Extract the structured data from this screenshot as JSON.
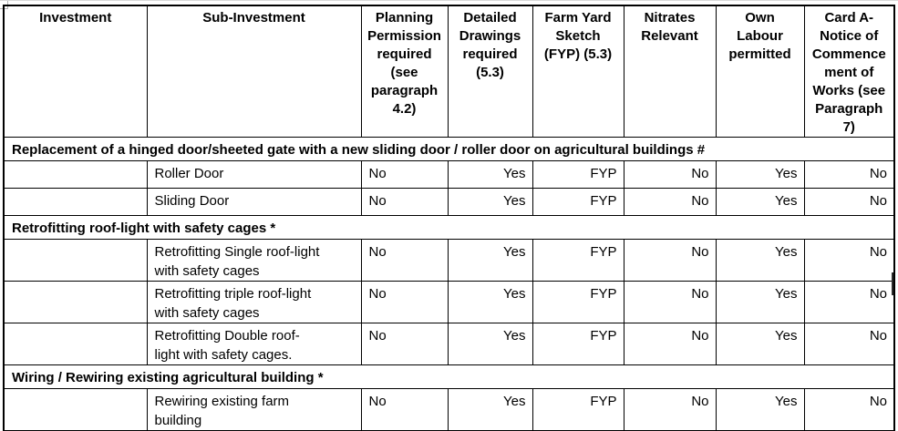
{
  "table": {
    "columns": [
      {
        "key": "investment",
        "label": "Investment"
      },
      {
        "key": "sub_investment",
        "label": "Sub-Investment"
      },
      {
        "key": "planning",
        "label": "Planning\nPermission\nrequired\n(see\nparagraph\n4.2)"
      },
      {
        "key": "drawings",
        "label": "Detailed\nDrawings\nrequired\n(5.3)"
      },
      {
        "key": "fyp",
        "label": "Farm Yard\nSketch\n(FYP) (5.3)"
      },
      {
        "key": "nitrates",
        "label": "Nitrates\nRelevant"
      },
      {
        "key": "labour",
        "label": "Own\nLabour\npermitted"
      },
      {
        "key": "card_a",
        "label": "Card A-\nNotice of\nCommence\nment of\nWorks (see\nParagraph\n7)"
      }
    ],
    "sections": [
      {
        "title": "Replacement of a hinged door/sheeted gate with a new sliding door / roller door on agricultural buildings #",
        "rows": [
          {
            "investment": "",
            "sub_investment": "Roller Door",
            "planning": "No",
            "drawings": "Yes",
            "fyp": "FYP",
            "nitrates": "No",
            "labour": "Yes",
            "card_a": "No"
          },
          {
            "investment": "",
            "sub_investment": "Sliding Door",
            "planning": "No",
            "drawings": "Yes",
            "fyp": "FYP",
            "nitrates": "No",
            "labour": "Yes",
            "card_a": "No"
          }
        ]
      },
      {
        "title": "Retrofitting roof-light with safety cages *",
        "rows": [
          {
            "investment": "",
            "sub_investment": "Retrofitting Single roof-light\nwith safety cages",
            "planning": "No",
            "drawings": "Yes",
            "fyp": "FYP",
            "nitrates": "No",
            "labour": "Yes",
            "card_a": "No"
          },
          {
            "investment": "",
            "sub_investment": "Retrofitting triple roof-light\nwith safety cages",
            "planning": "No",
            "drawings": "Yes",
            "fyp": "FYP",
            "nitrates": "No",
            "labour": "Yes",
            "card_a": "No"
          },
          {
            "investment": "",
            "sub_investment": "Retrofitting Double roof-\nlight with safety cages.",
            "planning": "No",
            "drawings": "Yes",
            "fyp": "FYP",
            "nitrates": "No",
            "labour": "Yes",
            "card_a": "No"
          }
        ]
      },
      {
        "title": "Wiring / Rewiring existing agricultural building *",
        "rows": [
          {
            "investment": "",
            "sub_investment": "Rewiring existing farm\nbuilding",
            "planning": "No",
            "drawings": "Yes",
            "fyp": "FYP",
            "nitrates": "No",
            "labour": "Yes",
            "card_a": "No"
          }
        ]
      }
    ]
  }
}
